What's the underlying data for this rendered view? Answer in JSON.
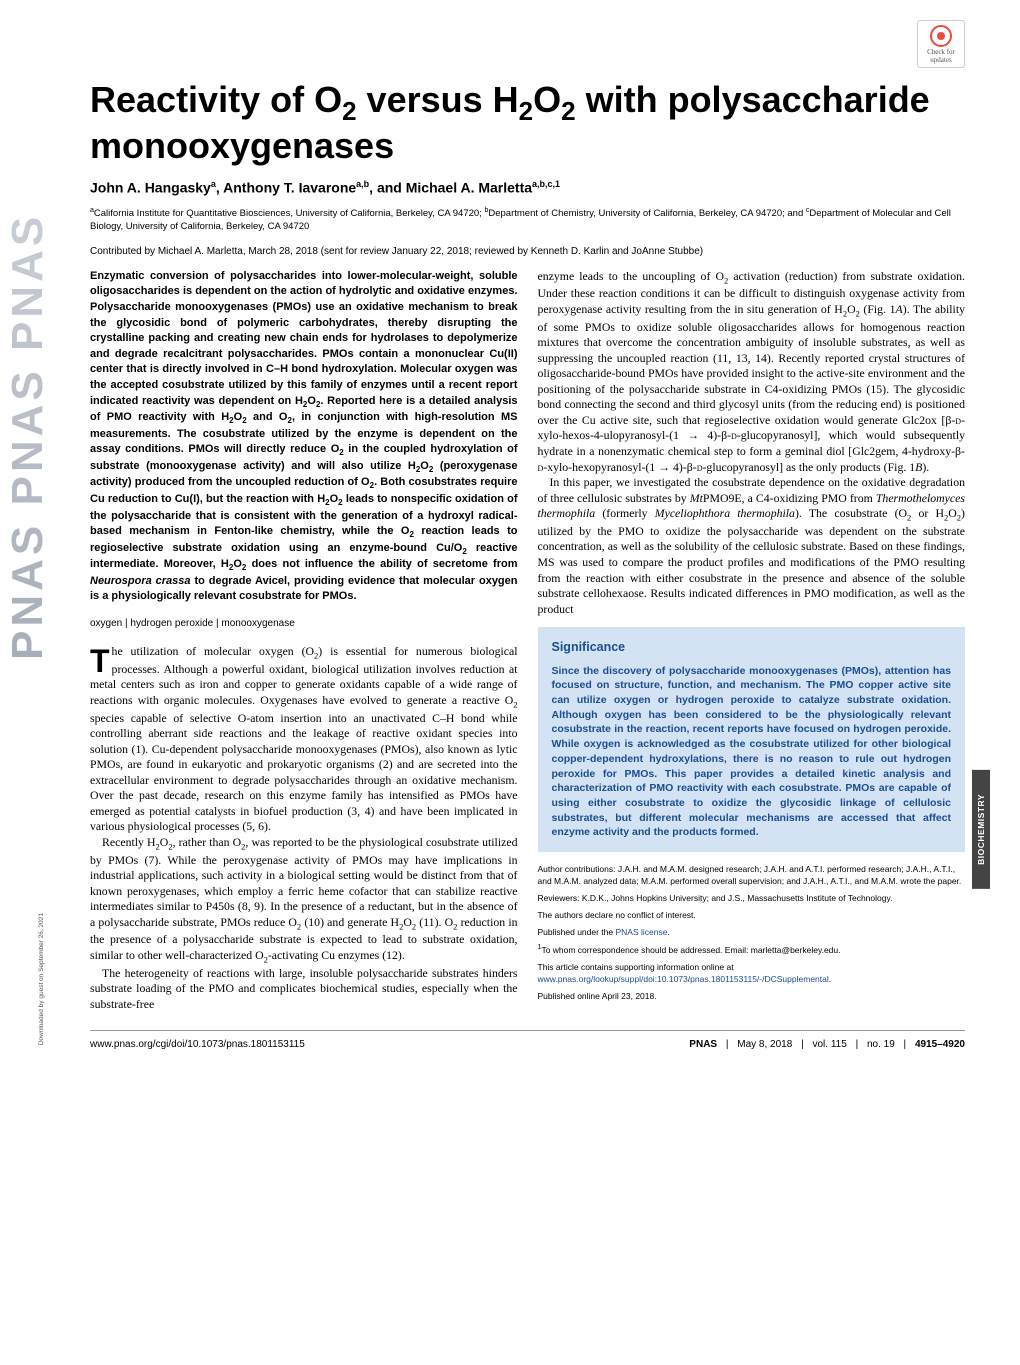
{
  "badge": {
    "line1": "Check for",
    "line2": "updates"
  },
  "title_html": "Reactivity of O<sub>2</sub> versus H<sub>2</sub>O<sub>2</sub> with polysaccharide monooxygenases",
  "authors_html": "John A. Hangasky<sup>a</sup>, Anthony T. Iavarone<sup>a,b</sup>, and Michael A. Marletta<sup>a,b,c,1</sup>",
  "affiliations_html": "<sup>a</sup>California Institute for Quantitative Biosciences, University of California, Berkeley, CA 94720; <sup>b</sup>Department of Chemistry, University of California, Berkeley, CA 94720; and <sup>c</sup>Department of Molecular and Cell Biology, University of California, Berkeley, CA 94720",
  "contributed": "Contributed by Michael A. Marletta, March 28, 2018 (sent for review January 22, 2018; reviewed by Kenneth D. Karlin and JoAnne Stubbe)",
  "abstract_html": "Enzymatic conversion of polysaccharides into lower-molecular-weight, soluble oligosaccharides is dependent on the action of hydrolytic and oxidative enzymes. Polysaccharide monooxygenases (PMOs) use an oxidative mechanism to break the glycosidic bond of polymeric carbohydrates, thereby disrupting the crystalline packing and creating new chain ends for hydrolases to depolymerize and degrade recalcitrant polysaccharides. PMOs contain a mononuclear Cu(II) center that is directly involved in C–H bond hydroxylation. Molecular oxygen was the accepted cosubstrate utilized by this family of enzymes until a recent report indicated reactivity was dependent on H<sub>2</sub>O<sub>2</sub>. Reported here is a detailed analysis of PMO reactivity with H<sub>2</sub>O<sub>2</sub> and O<sub>2</sub>, in conjunction with high-resolution MS measurements. The cosubstrate utilized by the enzyme is dependent on the assay conditions. PMOs will directly reduce O<sub>2</sub> in the coupled hydroxylation of substrate (monooxygenase activity) and will also utilize H<sub>2</sub>O<sub>2</sub> (peroxygenase activity) produced from the uncoupled reduction of O<sub>2</sub>. Both cosubstrates require Cu reduction to Cu(I), but the reaction with H<sub>2</sub>O<sub>2</sub> leads to nonspecific oxidation of the polysaccharide that is consistent with the generation of a hydroxyl radical-based mechanism in Fenton-like chemistry, while the O<sub>2</sub> reaction leads to regioselective substrate oxidation using an enzyme-bound Cu/O<sub>2</sub> reactive intermediate. Moreover, H<sub>2</sub>O<sub>2</sub> does not influence the ability of secretome from <i>Neurospora crassa</i> to degrade Avicel, providing evidence that molecular oxygen is a physiologically relevant cosubstrate for PMOs.",
  "keywords": "oxygen | hydrogen peroxide | monooxygenase",
  "col1_paragraphs_html": [
    "he utilization of molecular oxygen (O<sub>2</sub>) is essential for numerous biological processes. Although a powerful oxidant, biological utilization involves reduction at metal centers such as iron and copper to generate oxidants capable of a wide range of reactions with organic molecules. Oxygenases have evolved to generate a reactive O<sub>2</sub> species capable of selective O-atom insertion into an unactivated C–H bond while controlling aberrant side reactions and the leakage of reactive oxidant species into solution (1). Cu-dependent polysaccharide monooxygenases (PMOs), also known as lytic PMOs, are found in eukaryotic and prokaryotic organisms (2) and are secreted into the extracellular environment to degrade polysaccharides through an oxidative mechanism. Over the past decade, research on this enzyme family has intensified as PMOs have emerged as potential catalysts in biofuel production (3, 4) and have been implicated in various physiological processes (5, 6).",
    "Recently H<sub>2</sub>O<sub>2</sub>, rather than O<sub>2</sub>, was reported to be the physiological cosubstrate utilized by PMOs (7). While the peroxygenase activity of PMOs may have implications in industrial applications, such activity in a biological setting would be distinct from that of known peroxygenases, which employ a ferric heme cofactor that can stabilize reactive intermediates similar to P450s (8, 9). In the presence of a reductant, but in the absence of a polysaccharide substrate, PMOs reduce O<sub>2</sub> (10) and generate H<sub>2</sub>O<sub>2</sub> (11). O<sub>2</sub> reduction in the presence of a polysaccharide substrate is expected to lead to substrate oxidation, similar to other well-characterized O<sub>2</sub>-activating Cu enzymes (12).",
    "The heterogeneity of reactions with large, insoluble polysaccharide substrates hinders substrate loading of the PMO and complicates biochemical studies, especially when the substrate-free"
  ],
  "col2_top_html": "enzyme leads to the uncoupling of O<sub>2</sub> activation (reduction) from substrate oxidation. Under these reaction conditions it can be difficult to distinguish oxygenase activity from peroxygenase activity resulting from the in situ generation of H<sub>2</sub>O<sub>2</sub> (Fig. 1<i>A</i>). The ability of some PMOs to oxidize soluble oligosaccharides allows for homogenous reaction mixtures that overcome the concentration ambiguity of insoluble substrates, as well as suppressing the uncoupled reaction (11, 13, 14). Recently reported crystal structures of oligosaccharide-bound PMOs have provided insight to the active-site environment and the positioning of the polysaccharide substrate in C4-oxidizing PMOs (15). The glycosidic bond connecting the second and third glycosyl units (from the reducing end) is positioned over the Cu active site, such that regioselective oxidation would generate Glc2ox [β-<span style='font-variant:small-caps'>d</span>-xylo-hexos-4-ulopyranosyl-(1 → 4)-β-<span style='font-variant:small-caps'>d</span>-glucopyranosyl], which would subsequently hydrate in a nonenzymatic chemical step to form a geminal diol [Glc2gem, 4-hydroxy-β-<span style='font-variant:small-caps'>d</span>-xylo-hexopyranosyl-(1 → 4)-β-<span style='font-variant:small-caps'>d</span>-glucopyranosyl] as the only products (Fig. 1<i>B</i>).",
  "col2_para2_html": "In this paper, we investigated the cosubstrate dependence on the oxidative degradation of three cellulosic substrates by <i>Mt</i>PMO9E, a C4-oxidizing PMO from <i>Thermothelomyces thermophila</i> (formerly <i>Myceliophthora thermophila</i>). The cosubstrate (O<sub>2</sub> or H<sub>2</sub>O<sub>2</sub>) utilized by the PMO to oxidize the polysaccharide was dependent on the substrate concentration, as well as the solubility of the cellulosic substrate. Based on these findings, MS was used to compare the product profiles and modifications of the PMO resulting from the reaction with either cosubstrate in the presence and absence of the soluble substrate cellohexaose. Results indicated differences in PMO modification, as well as the product",
  "significance": {
    "title": "Significance",
    "body": "Since the discovery of polysaccharide monooxygenases (PMOs), attention has focused on structure, function, and mechanism. The PMO copper active site can utilize oxygen or hydrogen peroxide to catalyze substrate oxidation. Although oxygen has been considered to be the physiologically relevant cosubstrate in the reaction, recent reports have focused on hydrogen peroxide. While oxygen is acknowledged as the cosubstrate utilized for other biological copper-dependent hydroxylations, there is no reason to rule out hydrogen peroxide for PMOs. This paper provides a detailed kinetic analysis and characterization of PMO reactivity with each cosubstrate. PMOs are capable of using either cosubstrate to oxidize the glycosidic linkage of cellulosic substrates, but different molecular mechanisms are accessed that affect enzyme activity and the products formed."
  },
  "footnotes_html": [
    "Author contributions: J.A.H. and M.A.M. designed research; J.A.H. and A.T.I. performed research; J.A.H., A.T.I., and M.A.M. analyzed data; M.A.M. performed overall supervision; and J.A.H., A.T.I., and M.A.M. wrote the paper.",
    "Reviewers: K.D.K., Johns Hopkins University; and J.S., Massachusetts Institute of Technology.",
    "The authors declare no conflict of interest.",
    "Published under the <a href='#'>PNAS license</a>.",
    "<sup>1</sup>To whom correspondence should be addressed. Email: marletta@berkeley.edu.",
    "This article contains supporting information online at <a href='#'>www.pnas.org/lookup/suppl/doi:10.1073/pnas.1801153115/-/DCSupplemental</a>.",
    "Published online April 23, 2018."
  ],
  "footer": {
    "doi": "www.pnas.org/cgi/doi/10.1073/pnas.1801153115",
    "journal": "PNAS",
    "date": "May 8, 2018",
    "volume": "vol. 115",
    "number": "no. 19",
    "pages": "4915–4920"
  },
  "category_tab": "BIOCHEMISTRY",
  "download_note": "Downloaded by guest on September 26, 2021",
  "colors": {
    "significance_bg": "#d4e3f4",
    "significance_text": "#1a4d8f",
    "link": "#1a4d8f",
    "tab_bg": "#444444",
    "pnas_fill": "#b8bdc6"
  }
}
